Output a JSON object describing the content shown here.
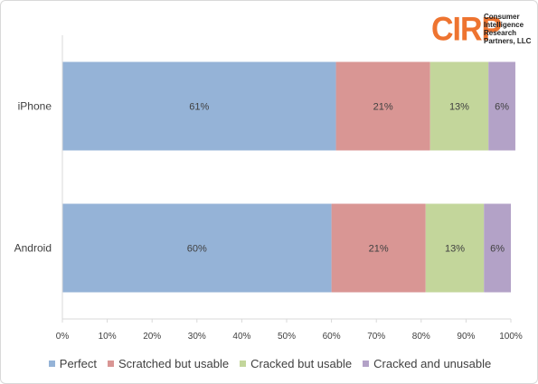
{
  "logo": {
    "mark": "CIRP",
    "lines": [
      "Consumer",
      "Intelligence",
      "Research",
      "Partners, LLC"
    ],
    "color": "#ee7430"
  },
  "chart_data": {
    "type": "bar",
    "orientation": "horizontal",
    "stacked": true,
    "percent": true,
    "categories": [
      "iPhone",
      "Android"
    ],
    "series": [
      {
        "name": "Perfect",
        "color": "#95b3d7",
        "values": [
          61,
          60
        ],
        "labels": [
          "61%",
          "60%"
        ]
      },
      {
        "name": "Scratched but usable",
        "color": "#d99694",
        "values": [
          21,
          21
        ],
        "labels": [
          "21%",
          "21%"
        ]
      },
      {
        "name": "Cracked but usable",
        "color": "#c3d69b",
        "values": [
          13,
          13
        ],
        "labels": [
          "13%",
          "13%"
        ]
      },
      {
        "name": "Cracked and unusable",
        "color": "#b3a2c7",
        "values": [
          6,
          6
        ],
        "labels": [
          "6%",
          "6%"
        ]
      }
    ],
    "xlim": [
      0,
      100
    ],
    "xticks": [
      "0%",
      "10%",
      "20%",
      "30%",
      "40%",
      "50%",
      "60%",
      "70%",
      "80%",
      "90%",
      "100%"
    ],
    "grid": false,
    "legend": "bottom",
    "title": "",
    "xlabel": "",
    "ylabel": ""
  }
}
